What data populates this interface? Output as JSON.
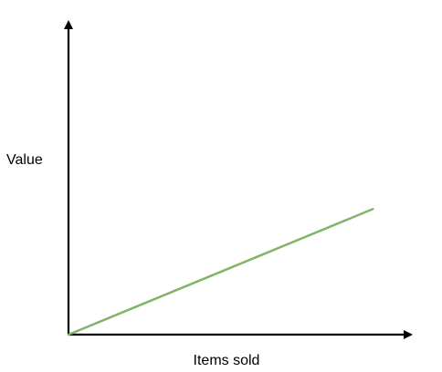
{
  "chart_data": {
    "type": "line",
    "title": "",
    "xlabel": "Items sold",
    "ylabel": "Value",
    "grid": false,
    "legend": "none",
    "series": [
      {
        "color": "#82b366",
        "x": [
          0,
          1
        ],
        "y": [
          0,
          1
        ]
      }
    ],
    "xlim": [
      0,
      1.17
    ],
    "ylim": [
      0,
      1.59
    ]
  },
  "colors": {
    "axis": "#000000",
    "line": "#82b366",
    "background": "#ffffff"
  }
}
